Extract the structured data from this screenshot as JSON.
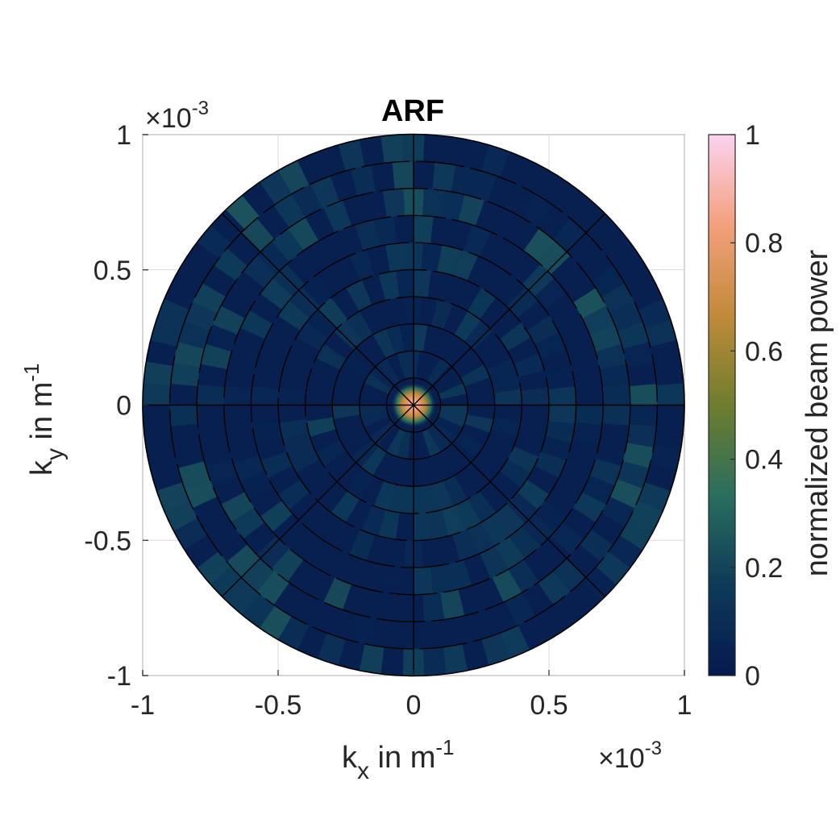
{
  "chart_data": {
    "type": "heatmap",
    "title": "ARF",
    "x_label": {
      "main": "k",
      "sub": "x",
      "rest": " in m",
      "sup": "-1"
    },
    "y_label": {
      "main": "k",
      "sub": "y",
      "rest": " in m",
      "sup": "-1"
    },
    "x_multiplier": {
      "base": "×10",
      "exp": "-3"
    },
    "y_multiplier": {
      "base": "×10",
      "exp": "-3"
    },
    "xlim": [
      -1,
      1
    ],
    "ylim": [
      -1,
      1
    ],
    "x_ticks": [
      -1,
      -0.5,
      0,
      0.5,
      1
    ],
    "y_ticks": [
      -1,
      -0.5,
      0,
      0.5,
      1
    ],
    "x_tick_labels": [
      "-1",
      "-0.5",
      "0",
      "0.5",
      "1"
    ],
    "y_tick_labels": [
      "-1",
      "-0.5",
      "0",
      "0.5",
      "1"
    ],
    "grid": true,
    "colorbar": {
      "label": "normalized beam power",
      "range": [
        0,
        1
      ],
      "ticks": [
        0,
        0.2,
        0.4,
        0.6,
        0.8,
        1
      ],
      "tick_labels": [
        "0",
        "0.2",
        "0.4",
        "0.6",
        "0.8",
        "1"
      ],
      "stops": [
        "#051a4d",
        "#0e3a5a",
        "#2a6e5e",
        "#6f7d2e",
        "#c28a3a",
        "#f4a07e",
        "#fbd2f0"
      ]
    },
    "polar_overlay": {
      "ring_radii": [
        0.1,
        0.2,
        0.3,
        0.4,
        0.5,
        0.6,
        0.7,
        0.8,
        0.9,
        1.0
      ],
      "spoke_angles_deg": [
        0,
        45,
        90,
        135,
        180,
        225,
        270,
        315
      ],
      "line_color": "#000000"
    },
    "peak": {
      "kx": 0,
      "ky": 0,
      "value": 1.0
    },
    "background_level": 0.03
  }
}
